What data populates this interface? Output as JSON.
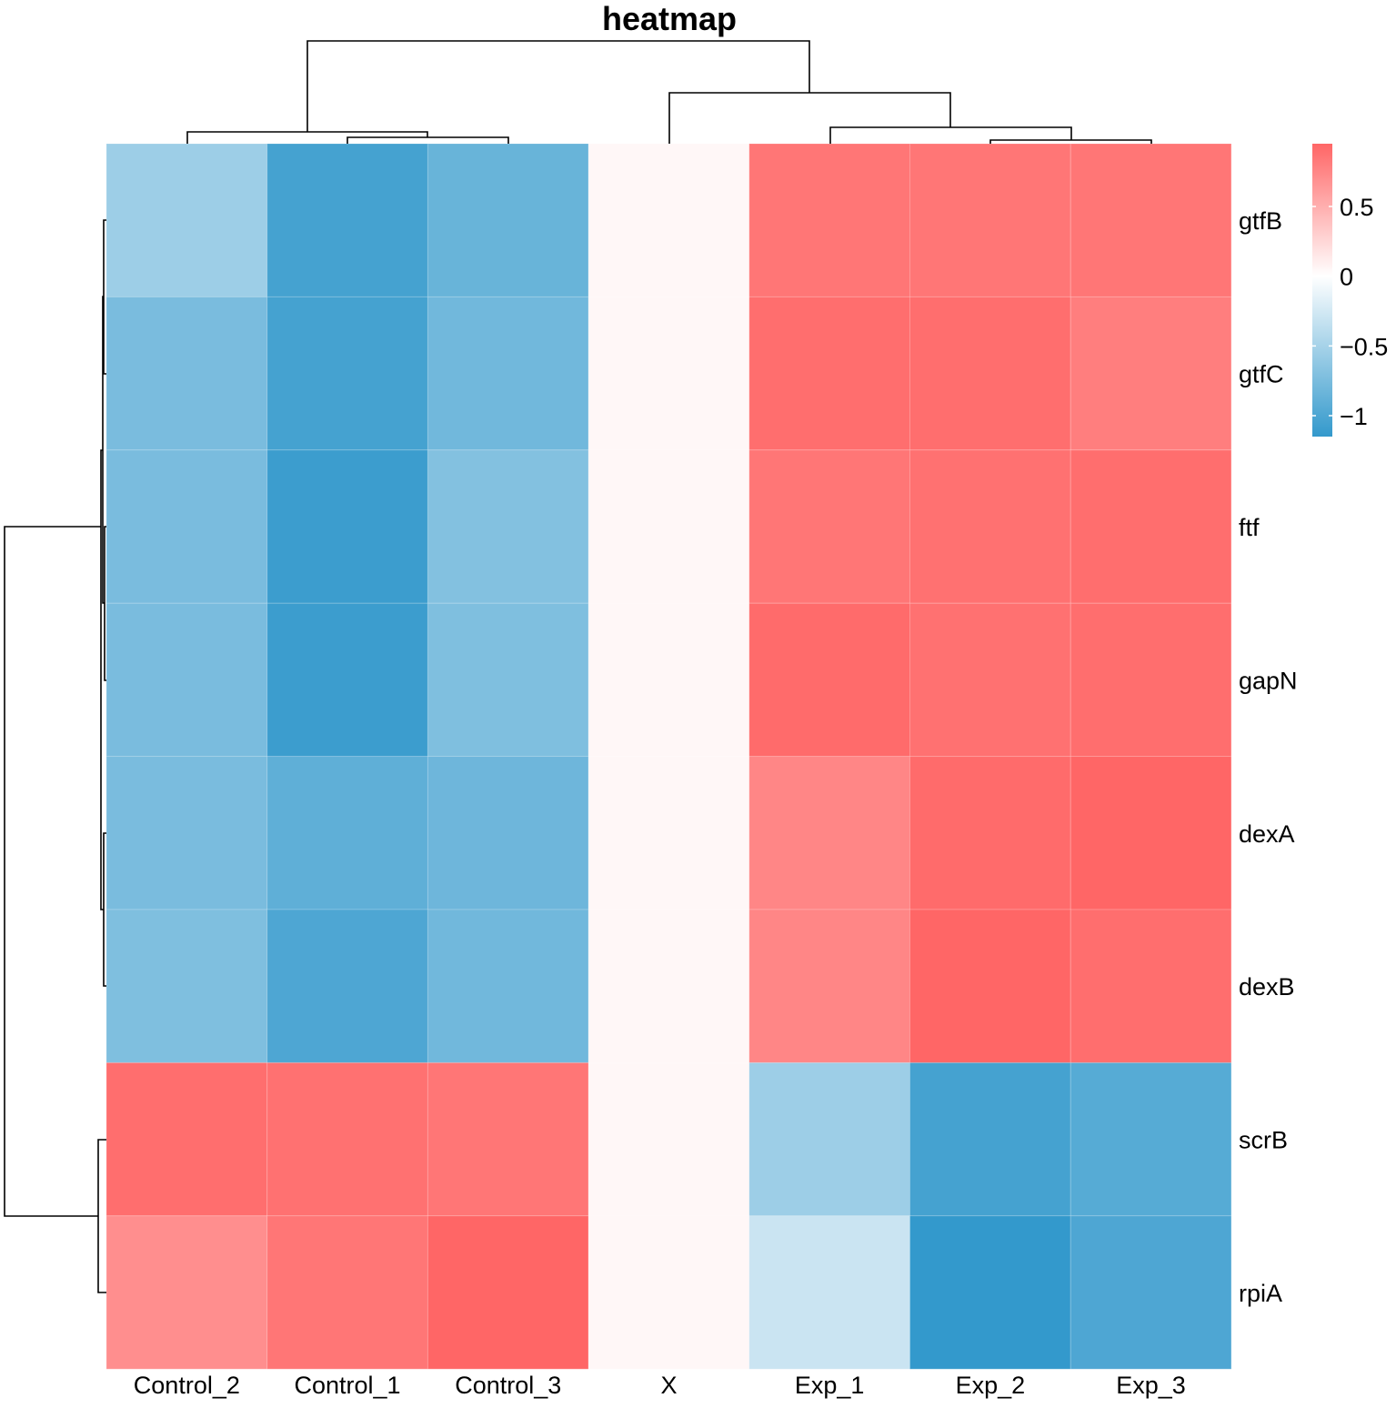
{
  "chart_data": {
    "type": "heatmap",
    "title": "heatmap",
    "columns": [
      "Control_2",
      "Control_1",
      "Control_3",
      "X",
      "Exp_1",
      "Exp_2",
      "Exp_3"
    ],
    "rows": [
      "gtfB",
      "gtfC",
      "ftf",
      "gapN",
      "dexA",
      "dexB",
      "scrB",
      "rpiA"
    ],
    "values": [
      [
        -0.55,
        -1.05,
        -0.85,
        0.05,
        0.85,
        0.85,
        0.85
      ],
      [
        -0.75,
        -1.05,
        -0.8,
        0.05,
        0.9,
        0.9,
        0.8
      ],
      [
        -0.75,
        -1.1,
        -0.7,
        0.05,
        0.85,
        0.88,
        0.9
      ],
      [
        -0.75,
        -1.1,
        -0.72,
        0.05,
        0.92,
        0.88,
        0.9
      ],
      [
        -0.75,
        -0.9,
        -0.82,
        0.05,
        0.75,
        0.92,
        0.95
      ],
      [
        -0.72,
        -1.0,
        -0.8,
        0.05,
        0.75,
        0.95,
        0.9
      ],
      [
        0.9,
        0.88,
        0.85,
        0.05,
        -0.55,
        -1.05,
        -0.95
      ],
      [
        0.7,
        0.85,
        0.95,
        0.05,
        -0.3,
        -1.2,
        -1.0
      ]
    ],
    "color_scale": {
      "min": -1.15,
      "max": 0.95,
      "low_color": "#3399CC",
      "mid_color": "#FFFFFF",
      "high_color": "#FF6666"
    },
    "legend": {
      "position": "right",
      "ticks": [
        0.5,
        0,
        -0.5,
        -1
      ],
      "tick_labels": [
        "0.5",
        "0",
        "−0.5",
        "−1"
      ]
    },
    "column_dendrogram": "((Control_2,(Control_1,Control_3)),(X,(Exp_1,(Exp_2,Exp_3))))",
    "row_dendrogram": "((((gtfB,gtfC),(ftf,gapN)),(dexA,dexB)),(scrB,rpiA))"
  }
}
